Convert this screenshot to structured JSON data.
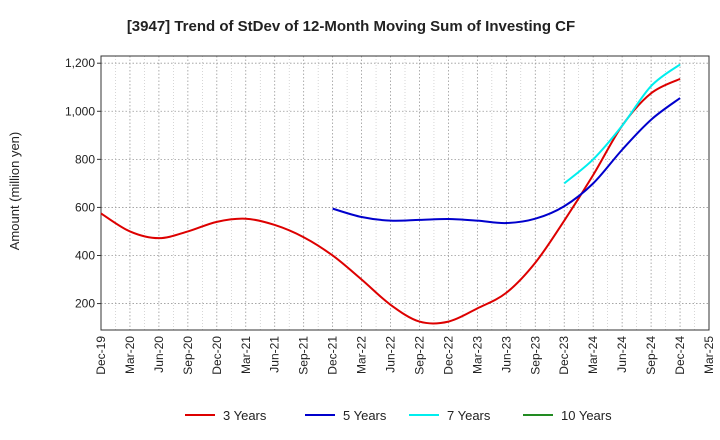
{
  "chart_data": {
    "type": "line",
    "title": "[3947]  Trend of StDev of 12-Month Moving Sum of Investing CF",
    "ylabel": "Amount (million yen)",
    "xlabel": "",
    "ylim": [
      90,
      1230
    ],
    "yticks": [
      200,
      400,
      600,
      800,
      1000,
      1200
    ],
    "ytick_labels": [
      "200",
      "400",
      "600",
      "800",
      "1,000",
      "1,200"
    ],
    "x_categories": [
      "Dec-19",
      "Mar-20",
      "Jun-20",
      "Sep-20",
      "Dec-20",
      "Mar-21",
      "Jun-21",
      "Sep-21",
      "Dec-21",
      "Mar-22",
      "Jun-22",
      "Sep-22",
      "Dec-22",
      "Mar-23",
      "Jun-23",
      "Sep-23",
      "Dec-23",
      "Mar-24",
      "Jun-24",
      "Sep-24",
      "Dec-24",
      "Mar-25"
    ],
    "grid": true,
    "legend_position": "bottom",
    "series": [
      {
        "name": "3 Years",
        "color": "#dd0000",
        "points": [
          {
            "x": "Dec-19",
            "y": 575
          },
          {
            "x": "Mar-20",
            "y": 500
          },
          {
            "x": "Jun-20",
            "y": 472
          },
          {
            "x": "Sep-20",
            "y": 500
          },
          {
            "x": "Dec-20",
            "y": 540
          },
          {
            "x": "Mar-21",
            "y": 553
          },
          {
            "x": "Jun-21",
            "y": 527
          },
          {
            "x": "Sep-21",
            "y": 476
          },
          {
            "x": "Dec-21",
            "y": 400
          },
          {
            "x": "Mar-22",
            "y": 300
          },
          {
            "x": "Jun-22",
            "y": 195
          },
          {
            "x": "Sep-22",
            "y": 125
          },
          {
            "x": "Dec-22",
            "y": 125
          },
          {
            "x": "Mar-23",
            "y": 180
          },
          {
            "x": "Jun-23",
            "y": 245
          },
          {
            "x": "Sep-23",
            "y": 370
          },
          {
            "x": "Dec-23",
            "y": 545
          },
          {
            "x": "Mar-24",
            "y": 735
          },
          {
            "x": "Jun-24",
            "y": 940
          },
          {
            "x": "Sep-24",
            "y": 1075
          },
          {
            "x": "Dec-24",
            "y": 1135
          }
        ]
      },
      {
        "name": "5 Years",
        "color": "#0000cc",
        "points": [
          {
            "x": "Dec-21",
            "y": 595
          },
          {
            "x": "Mar-22",
            "y": 560
          },
          {
            "x": "Jun-22",
            "y": 545
          },
          {
            "x": "Sep-22",
            "y": 548
          },
          {
            "x": "Dec-22",
            "y": 552
          },
          {
            "x": "Mar-23",
            "y": 545
          },
          {
            "x": "Jun-23",
            "y": 535
          },
          {
            "x": "Sep-23",
            "y": 553
          },
          {
            "x": "Dec-23",
            "y": 605
          },
          {
            "x": "Mar-24",
            "y": 700
          },
          {
            "x": "Jun-24",
            "y": 840
          },
          {
            "x": "Sep-24",
            "y": 965
          },
          {
            "x": "Dec-24",
            "y": 1055
          }
        ]
      },
      {
        "name": "7 Years",
        "color": "#00eeee",
        "points": [
          {
            "x": "Dec-23",
            "y": 700
          },
          {
            "x": "Mar-24",
            "y": 800
          },
          {
            "x": "Jun-24",
            "y": 940
          },
          {
            "x": "Sep-24",
            "y": 1105
          },
          {
            "x": "Dec-24",
            "y": 1195
          }
        ]
      },
      {
        "name": "10 Years",
        "color": "#228b22",
        "points": []
      }
    ]
  }
}
